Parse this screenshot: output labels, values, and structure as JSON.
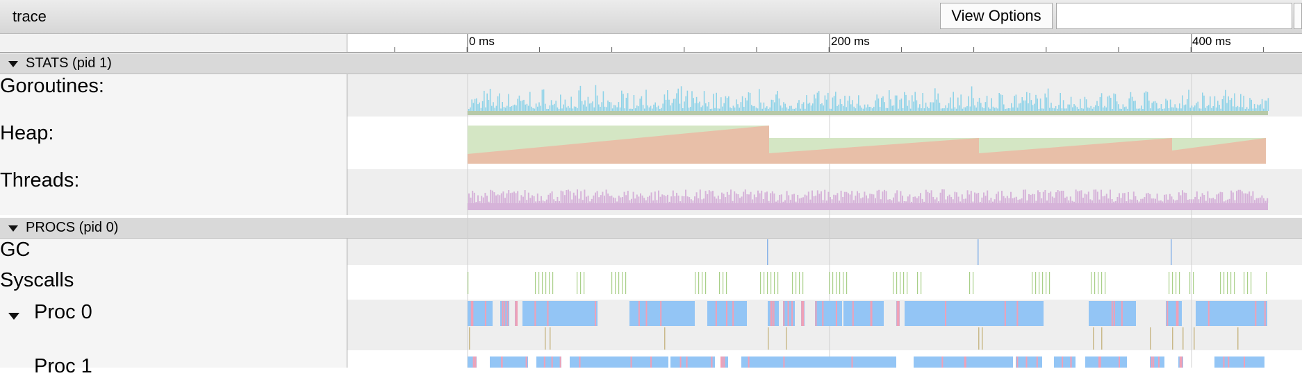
{
  "header": {
    "title": "trace",
    "view_options_label": "View Options",
    "search_value": ""
  },
  "ruler": {
    "labels": [
      "0 ms",
      "200 ms",
      "400 ms"
    ]
  },
  "groups": {
    "stats": {
      "label": "STATS (pid 1)",
      "rows": [
        "Goroutines:",
        "Heap:",
        "Threads:"
      ]
    },
    "procs": {
      "label": "PROCS (pid 0)",
      "rows": [
        "GC",
        "Syscalls",
        "Proc 0",
        "Proc 1"
      ]
    }
  },
  "colors": {
    "goroutines": "#8fd3e8",
    "goroutines_base": "#b7c9a8",
    "heap_alloc": "#e8bfa8",
    "heap_next_gc": "#d4e6c4",
    "threads": "#d6b3d9",
    "syscall": "#a8cf88",
    "proc_slice": "#93c5f5",
    "proc_slice_alt": "#f0a0b6",
    "gc_marker": "#8ab4e8",
    "row_alt": "#eeeeee"
  }
}
